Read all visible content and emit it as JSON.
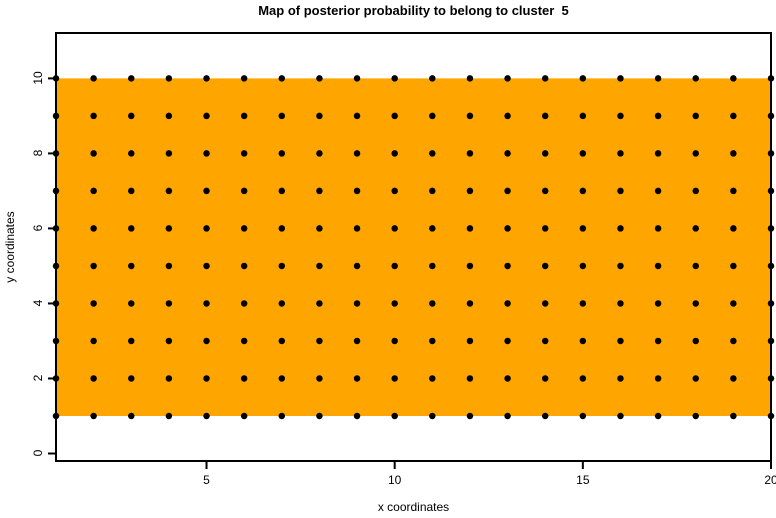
{
  "chart_data": {
    "type": "scatter",
    "title": "Map of posterior probability to belong to cluster  5",
    "xlabel": "x coordinates",
    "ylabel": "y coordinates",
    "xlim": [
      1,
      20
    ],
    "ylim": [
      -0.2,
      11.21
    ],
    "x_ticks": [
      5,
      10,
      15,
      20
    ],
    "y_ticks": [
      0,
      2,
      4,
      6,
      8,
      10
    ],
    "grid": "off",
    "legend": "none",
    "points_grid": {
      "x_values": [
        1,
        2,
        3,
        4,
        5,
        6,
        7,
        8,
        9,
        10,
        11,
        12,
        13,
        14,
        15,
        16,
        17,
        18,
        19,
        20
      ],
      "y_values": [
        1,
        2,
        3,
        4,
        5,
        6,
        7,
        8,
        9,
        10
      ],
      "marker": "filled-circle",
      "marker_diameter_px": 6.5
    },
    "highlight_region": {
      "x0": 1,
      "x1": 20,
      "y0": 1,
      "y1": 10,
      "fill": "#FFA500"
    },
    "colors": {
      "region": "#FFA500",
      "points": "#000000",
      "axis": "#000000",
      "background": "#FFFFFF"
    }
  }
}
